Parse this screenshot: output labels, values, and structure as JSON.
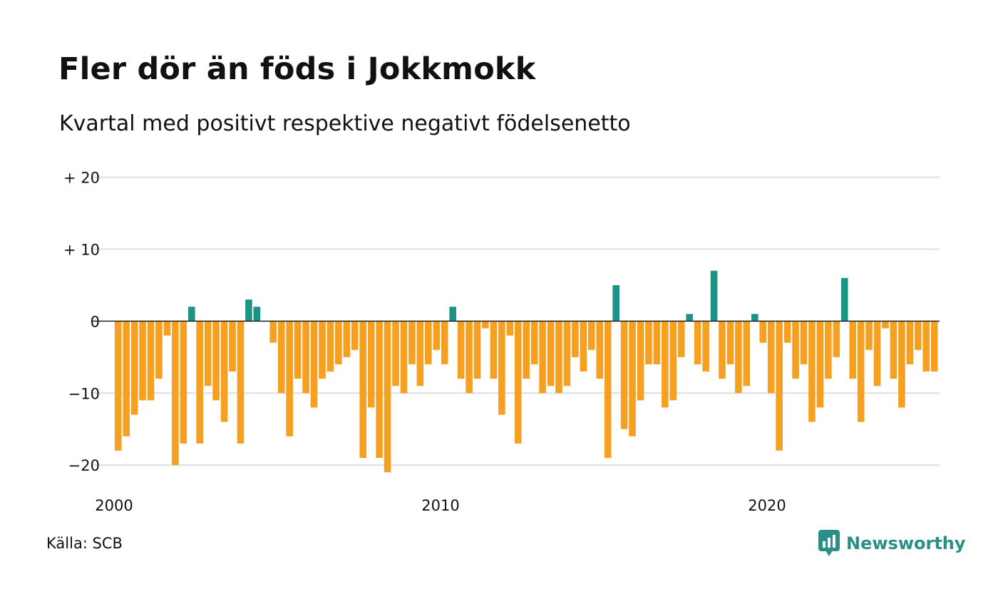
{
  "header": {
    "title": "Fler dör än föds i Jokkmokk",
    "subtitle": "Kvartal med positivt respektive negativt födelsenetto"
  },
  "footer": {
    "source": "Källa: SCB",
    "brand": "Newsworthy",
    "brand_icon": "newsworthy-logo-icon"
  },
  "colors": {
    "positive": "#1b9486",
    "negative": "#f5a020",
    "grid": "#dddddd",
    "zero_line": "#222222",
    "brand": "#2a8f86"
  },
  "chart_data": {
    "type": "bar",
    "title": "Fler dör än föds i Jokkmokk",
    "subtitle": "Kvartal med positivt respektive negativt födelsenetto",
    "xlabel": "",
    "ylabel": "",
    "x_start": 2000,
    "periods_per_year": 4,
    "x_ticks": [
      2000,
      2010,
      2020
    ],
    "x_tick_labels": [
      "2000",
      "2010",
      "2020"
    ],
    "ylim": [
      -23,
      21
    ],
    "y_ticks": [
      20,
      10,
      0,
      -10,
      -20
    ],
    "y_tick_labels": [
      "+ 20",
      "+ 10",
      "0",
      "−10",
      "−20"
    ],
    "grid": true,
    "legend": "none",
    "values": [
      -18,
      -16,
      -13,
      -11,
      -11,
      -8,
      -2,
      -20,
      -17,
      2,
      -17,
      -9,
      -11,
      -14,
      -7,
      -17,
      3,
      2,
      0,
      -3,
      -10,
      -16,
      -8,
      -10,
      -12,
      -8,
      -7,
      -6,
      -5,
      -4,
      -19,
      -12,
      -19,
      -21,
      -9,
      -10,
      -6,
      -9,
      -6,
      -4,
      -6,
      2,
      -8,
      -10,
      -8,
      -1,
      -8,
      -13,
      -2,
      -17,
      -8,
      -6,
      -10,
      -9,
      -10,
      -9,
      -5,
      -7,
      -4,
      -8,
      -19,
      5,
      -15,
      -16,
      -11,
      -6,
      -6,
      -12,
      -11,
      -5,
      1,
      -6,
      -7,
      7,
      -8,
      -6,
      -10,
      -9,
      1,
      -3,
      -10,
      -18,
      -3,
      -8,
      -6,
      -14,
      -12,
      -8,
      -5,
      6,
      -8,
      -14,
      -4,
      -9,
      -1,
      -8,
      -12,
      -6,
      -4,
      -7,
      -7
    ]
  }
}
